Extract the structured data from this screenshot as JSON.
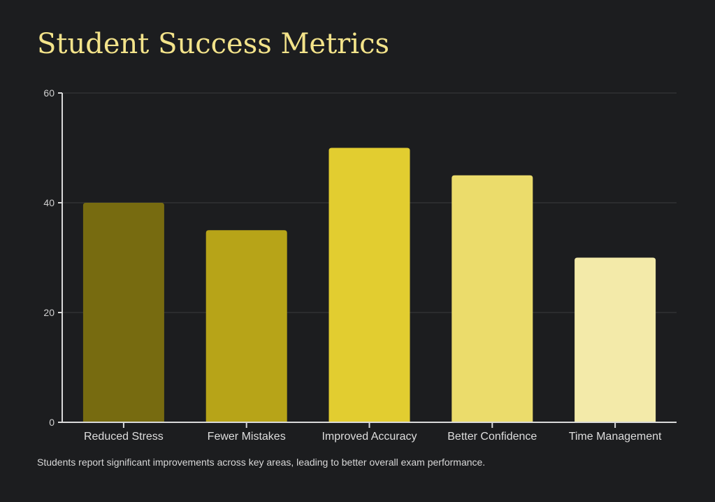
{
  "page": {
    "title": "Student Success Metrics",
    "caption": "Students report significant improvements across key areas, leading to better overall exam performance."
  },
  "chart_data": {
    "type": "bar",
    "categories": [
      "Reduced Stress",
      "Fewer Mistakes",
      "Improved Accuracy",
      "Better Confidence",
      "Time Management"
    ],
    "values": [
      40,
      35,
      50,
      45,
      30
    ],
    "bar_colors": [
      "#776b10",
      "#b7a418",
      "#e2cd30",
      "#ebdc6b",
      "#f3eaa9"
    ],
    "ylim": [
      0,
      60
    ],
    "yticks": [
      0,
      20,
      40,
      60
    ],
    "grid": true,
    "title": "",
    "xlabel": "",
    "ylabel": ""
  },
  "colors": {
    "background": "#1c1d1f",
    "title": "#f3e38a",
    "axis": "#d9d9d9",
    "grid": "#3a3b3d"
  }
}
